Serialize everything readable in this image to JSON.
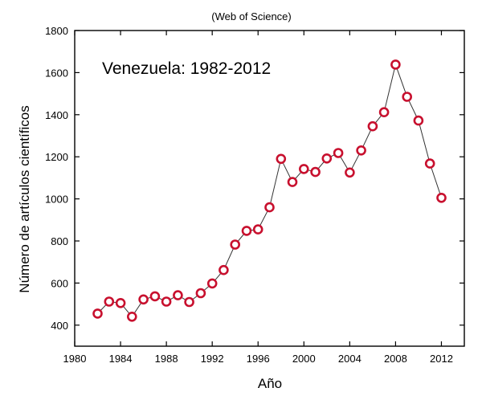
{
  "chart_data": {
    "type": "scatter",
    "subtitle": "(Web of Science)",
    "title": "Venezuela: 1982-2012",
    "xlabel": "Año",
    "ylabel": "Número de artículos científicos",
    "xlim": [
      1980,
      2014
    ],
    "ylim": [
      300,
      1800
    ],
    "xticks": [
      1980,
      1984,
      1988,
      1992,
      1996,
      2000,
      2004,
      2008,
      2012
    ],
    "yticks": [
      400,
      600,
      800,
      1000,
      1200,
      1400,
      1600,
      1800
    ],
    "grid": false,
    "line_color": "#333333",
    "marker_color": "#c8102e",
    "series": [
      {
        "x": [
          1982,
          1983,
          1984,
          1985,
          1986,
          1987,
          1988,
          1989,
          1990,
          1991,
          1992,
          1993,
          1994,
          1995,
          1996,
          1997,
          1998,
          1999,
          2000,
          2001,
          2002,
          2003,
          2004,
          2005,
          2006,
          2007,
          2008,
          2009,
          2010,
          2011,
          2012
        ],
        "y": [
          455,
          512,
          505,
          440,
          522,
          537,
          512,
          542,
          510,
          552,
          598,
          662,
          783,
          848,
          855,
          960,
          1190,
          1080,
          1142,
          1128,
          1192,
          1218,
          1125,
          1230,
          1345,
          1412,
          1638,
          1485,
          1372,
          1168,
          1005
        ]
      }
    ]
  }
}
